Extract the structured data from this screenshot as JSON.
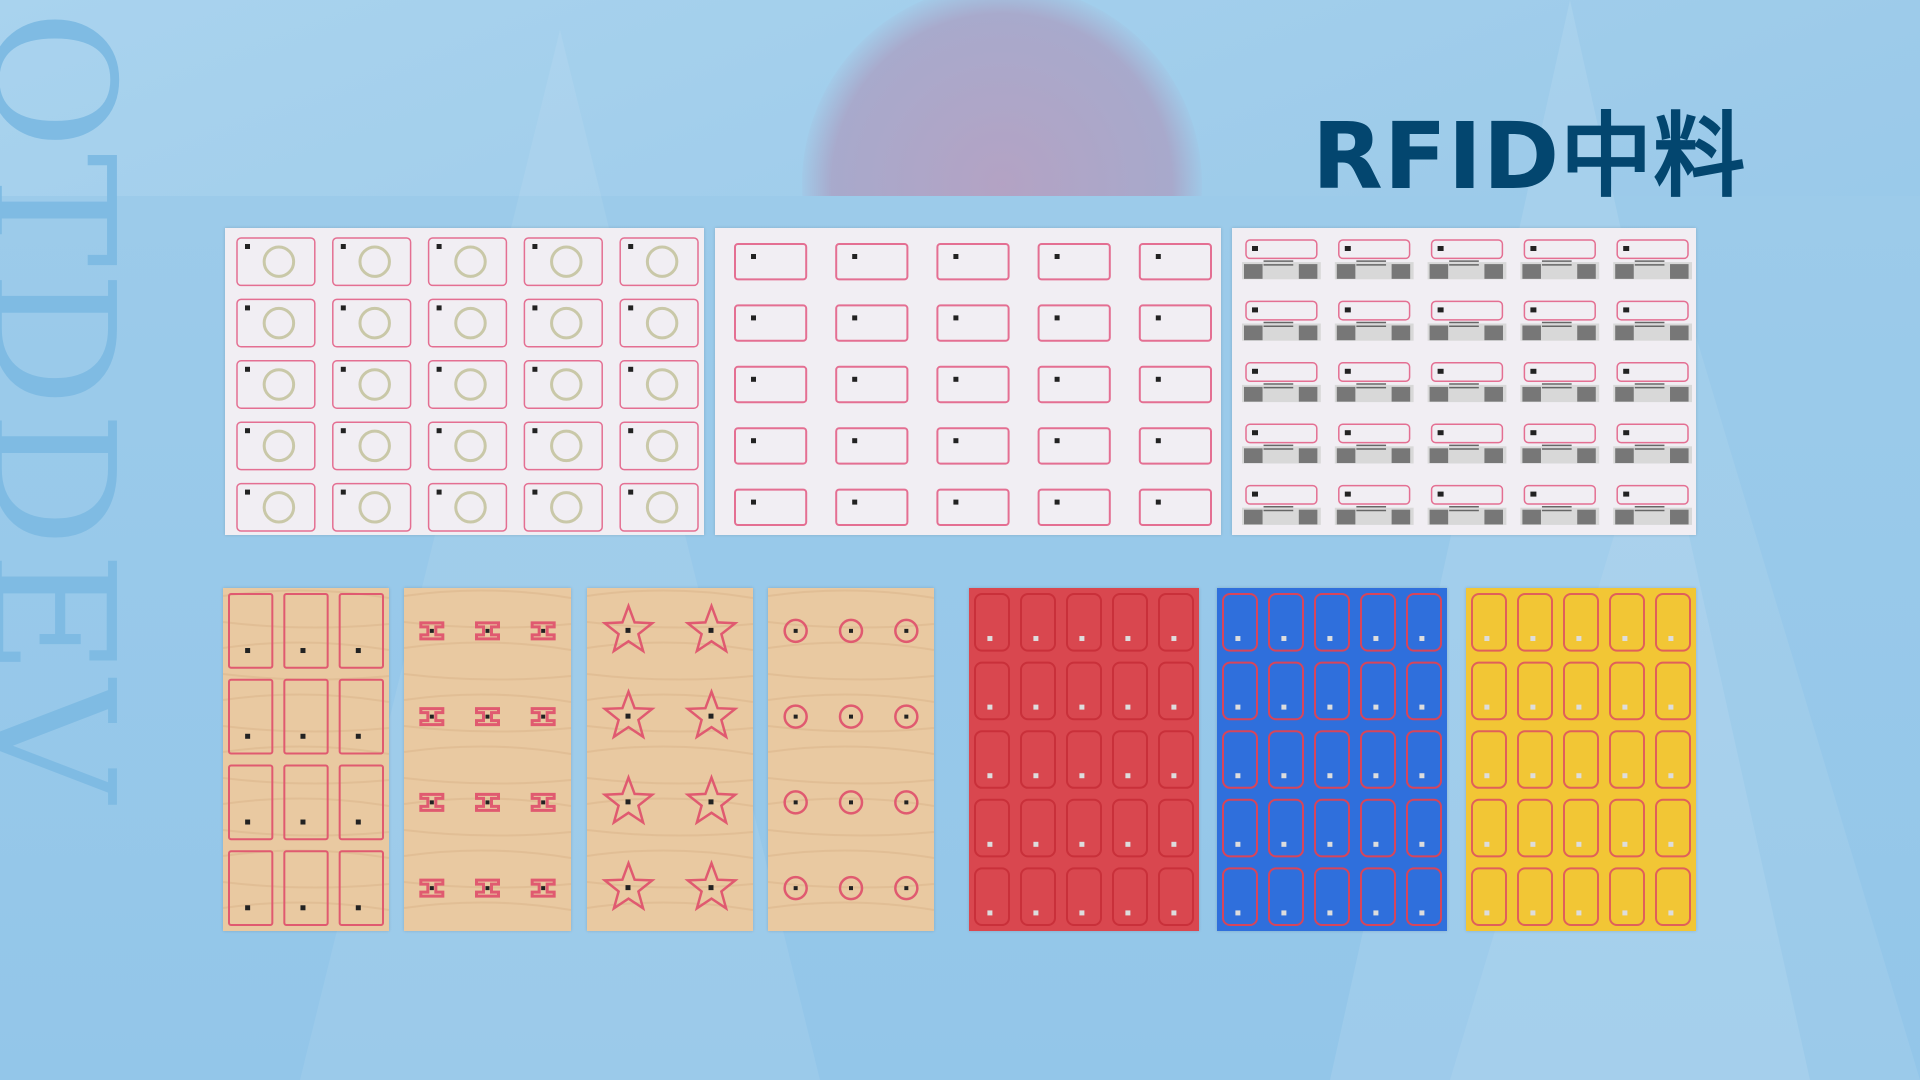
{
  "title": "RFID中料",
  "watermark": "OTDDEV",
  "colors": {
    "title": "#03466f",
    "background": "#9dcbea",
    "antenna": "#e0557a"
  },
  "panels": [
    {
      "name": "hf-coin-inlay-sheet",
      "substrate": "white",
      "shape": "ring",
      "cols": 5,
      "rows": 5
    },
    {
      "name": "card-inlay-sheet",
      "substrate": "white",
      "shape": "card-rect",
      "cols": 5,
      "rows": 5
    },
    {
      "name": "dual-frequency-inlay-sheet",
      "substrate": "white",
      "shape": "uhf-label",
      "cols": 5,
      "rows": 5
    },
    {
      "name": "wood-card-inlay-sheet",
      "substrate": "wood",
      "shape": "card-vertical",
      "cols": 3,
      "rows": 4
    },
    {
      "name": "wood-small-tag-sheet",
      "substrate": "wood",
      "shape": "i-tag",
      "cols": 3,
      "rows": 4
    },
    {
      "name": "wood-star-inlay-sheet",
      "substrate": "wood",
      "shape": "star",
      "cols": 2,
      "rows": 4
    },
    {
      "name": "wood-circle-inlay-sheet",
      "substrate": "wood",
      "shape": "circle",
      "cols": 3,
      "rows": 4
    },
    {
      "name": "red-card-inlay-sheet",
      "substrate": "red",
      "shape": "card-vertical",
      "cols": 5,
      "rows": 5
    },
    {
      "name": "blue-card-inlay-sheet",
      "substrate": "blue",
      "shape": "card-vertical",
      "cols": 5,
      "rows": 5
    },
    {
      "name": "yellow-card-inlay-sheet",
      "substrate": "yellow",
      "shape": "card-vertical",
      "cols": 5,
      "rows": 5
    }
  ]
}
